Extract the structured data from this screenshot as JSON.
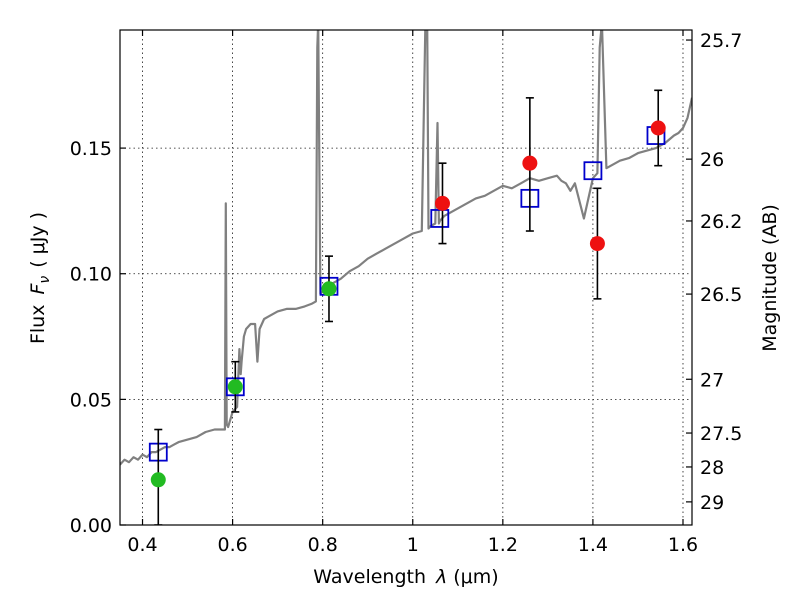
{
  "chart_data": {
    "type": "scatter",
    "xlabel_text": "Wavelength",
    "xlabel_symbol": "λ",
    "xlabel_unit": "(μm)",
    "ylabel_text": "Flux",
    "ylabel_symbol": "F",
    "ylabel_sub": "ν",
    "ylabel_unit": "( μJy )",
    "y2label": "Magnitude (AB)",
    "xlim": [
      0.35,
      1.62
    ],
    "ylim": [
      0.0,
      0.197
    ],
    "grid": true,
    "x_ticks": [
      0.4,
      0.6,
      0.8,
      1.0,
      1.2,
      1.4,
      1.6
    ],
    "x_tick_labels": [
      "0.4",
      "0.6",
      "0.8",
      "1",
      "1.2",
      "1.4",
      "1.6"
    ],
    "y_ticks": [
      0.0,
      0.05,
      0.1,
      0.15
    ],
    "y_tick_labels": [
      "0.00",
      "0.05",
      "0.10",
      "0.15"
    ],
    "y2_ticks": [
      {
        "label": "25.7",
        "flux": 0.193
      },
      {
        "label": "26",
        "flux": 0.1456
      },
      {
        "label": "26.2",
        "flux": 0.121
      },
      {
        "label": "26.5",
        "flux": 0.0919
      },
      {
        "label": "27",
        "flux": 0.058
      },
      {
        "label": "27.5",
        "flux": 0.0366
      },
      {
        "label": "28",
        "flux": 0.0231
      },
      {
        "label": "29",
        "flux": 0.0092
      }
    ],
    "series": [
      {
        "kind": "model-spectrum",
        "color": "#808080",
        "x": [
          0.35,
          0.36,
          0.37,
          0.38,
          0.39,
          0.4,
          0.41,
          0.42,
          0.43,
          0.44,
          0.45,
          0.46,
          0.47,
          0.48,
          0.5,
          0.52,
          0.54,
          0.56,
          0.575,
          0.583,
          0.585,
          0.587,
          0.59,
          0.6,
          0.61,
          0.615,
          0.618,
          0.62,
          0.625,
          0.63,
          0.64,
          0.65,
          0.655,
          0.66,
          0.67,
          0.68,
          0.7,
          0.72,
          0.74,
          0.76,
          0.775,
          0.785,
          0.788,
          0.79,
          0.795,
          0.8,
          0.81,
          0.82,
          0.84,
          0.86,
          0.88,
          0.9,
          0.92,
          0.94,
          0.96,
          0.98,
          1.0,
          1.02,
          1.028,
          1.032,
          1.035,
          1.04,
          1.05,
          1.055,
          1.058,
          1.06,
          1.07,
          1.08,
          1.1,
          1.12,
          1.14,
          1.16,
          1.18,
          1.2,
          1.22,
          1.24,
          1.26,
          1.28,
          1.3,
          1.32,
          1.33,
          1.34,
          1.35,
          1.36,
          1.38,
          1.4,
          1.41,
          1.415,
          1.42,
          1.43,
          1.44,
          1.46,
          1.48,
          1.5,
          1.52,
          1.54,
          1.56,
          1.58,
          1.59,
          1.6,
          1.61,
          1.62
        ],
        "y": [
          0.024,
          0.026,
          0.025,
          0.027,
          0.026,
          0.028,
          0.027,
          0.029,
          0.029,
          0.03,
          0.031,
          0.031,
          0.032,
          0.033,
          0.034,
          0.035,
          0.037,
          0.038,
          0.038,
          0.038,
          0.128,
          0.04,
          0.039,
          0.045,
          0.047,
          0.07,
          0.06,
          0.065,
          0.075,
          0.078,
          0.08,
          0.08,
          0.065,
          0.078,
          0.082,
          0.083,
          0.085,
          0.086,
          0.086,
          0.087,
          0.088,
          0.089,
          0.19,
          0.2,
          0.092,
          0.093,
          0.095,
          0.096,
          0.098,
          0.101,
          0.103,
          0.106,
          0.108,
          0.11,
          0.112,
          0.114,
          0.116,
          0.117,
          0.2,
          0.2,
          0.118,
          0.119,
          0.12,
          0.16,
          0.12,
          0.121,
          0.123,
          0.124,
          0.126,
          0.128,
          0.13,
          0.131,
          0.133,
          0.135,
          0.134,
          0.136,
          0.138,
          0.137,
          0.138,
          0.139,
          0.137,
          0.136,
          0.133,
          0.136,
          0.122,
          0.138,
          0.14,
          0.19,
          0.2,
          0.142,
          0.143,
          0.145,
          0.146,
          0.148,
          0.149,
          0.15,
          0.152,
          0.155,
          0.156,
          0.158,
          0.162,
          0.17
        ]
      },
      {
        "kind": "model-photometry",
        "marker": "open-square",
        "color": "#0000cc",
        "x": [
          0.435,
          0.606,
          0.814,
          1.06,
          1.26,
          1.4,
          1.54
        ],
        "y": [
          0.029,
          0.055,
          0.095,
          0.122,
          0.13,
          0.141,
          0.155
        ]
      },
      {
        "kind": "detection",
        "marker": "circle",
        "color": "#22bb22",
        "x": [
          0.435,
          0.606,
          0.814
        ],
        "y": [
          0.018,
          0.055,
          0.094
        ],
        "err_lo": [
          0.018,
          0.01,
          0.013
        ],
        "err_hi": [
          0.02,
          0.01,
          0.013
        ]
      },
      {
        "kind": "detection",
        "marker": "circle",
        "color": "#ee1111",
        "x": [
          1.066,
          1.26,
          1.41,
          1.545
        ],
        "y": [
          0.128,
          0.144,
          0.112,
          0.158
        ],
        "err_lo": [
          0.016,
          0.027,
          0.022,
          0.015
        ],
        "err_hi": [
          0.016,
          0.026,
          0.022,
          0.015
        ]
      }
    ]
  }
}
